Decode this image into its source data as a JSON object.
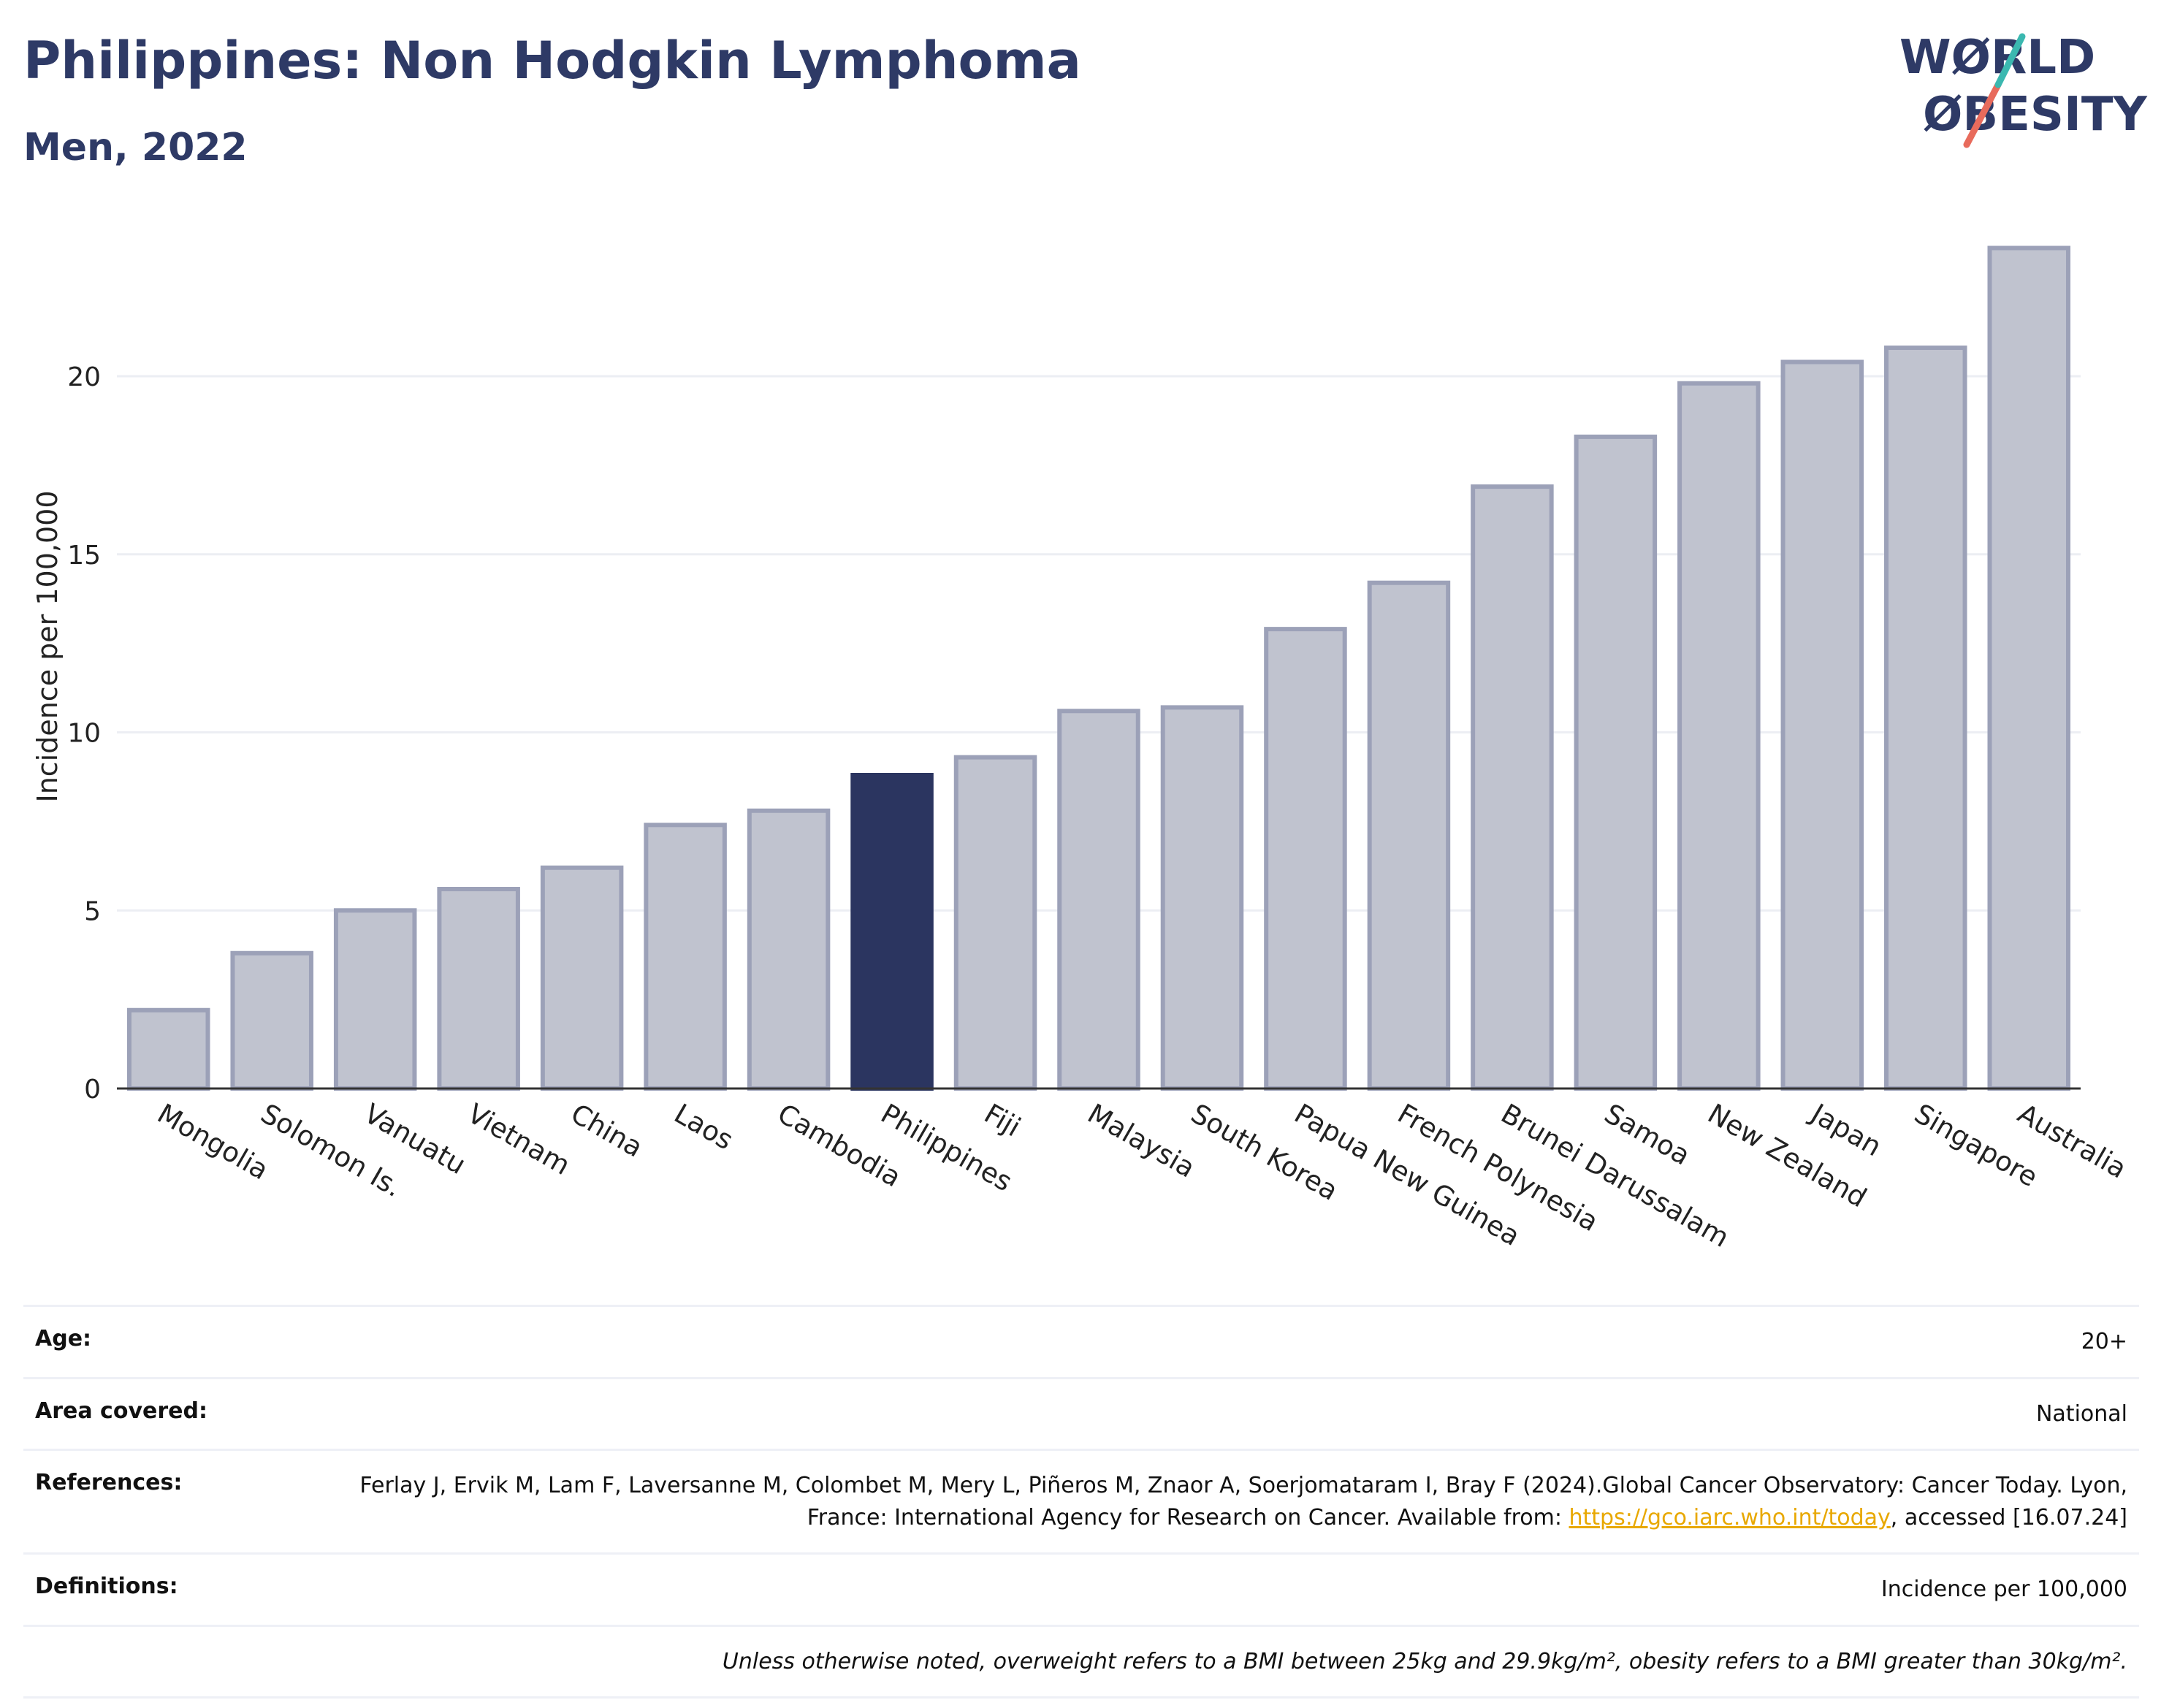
{
  "header": {
    "title": "Philippines: Non Hodgkin Lymphoma",
    "subtitle": "Men, 2022"
  },
  "logo": {
    "line1": "WØRLD",
    "line2": "ØBESITY",
    "colors": {
      "text": "#2e3a66",
      "slash_top": "#3bb8b0",
      "slash_bottom": "#e86b5c"
    }
  },
  "chart_data": {
    "type": "bar",
    "title": "",
    "xlabel": "",
    "ylabel": "Incidence per 100,000",
    "ylim": [
      0,
      24
    ],
    "yticks": [
      0,
      5,
      10,
      15,
      20
    ],
    "grid": true,
    "highlight": "Philippines",
    "categories": [
      "Mongolia",
      "Solomon Is.",
      "Vanuatu",
      "Vietnam",
      "China",
      "Laos",
      "Cambodia",
      "Philippines",
      "Fiji",
      "Malaysia",
      "South Korea",
      "Papua New Guinea",
      "French Polynesia",
      "Brunei Darussalam",
      "Samoa",
      "New Zealand",
      "Japan",
      "Singapore",
      "Australia"
    ],
    "values": [
      2.2,
      3.8,
      5.0,
      5.6,
      6.2,
      7.4,
      7.8,
      8.8,
      9.3,
      10.6,
      10.7,
      12.9,
      14.2,
      16.9,
      18.3,
      19.8,
      20.4,
      20.8,
      23.6
    ],
    "colors": {
      "bar": "#c0c3cf",
      "bar_border": "#9ca1b8",
      "highlight": "#2b3560",
      "axis": "#333333",
      "grid": "#eceef3"
    }
  },
  "info": {
    "age_label": "Age:",
    "age_value": "20+",
    "area_label": "Area covered:",
    "area_value": "National",
    "references_label": "References:",
    "references_text1": "Ferlay J, Ervik M, Lam F, Laversanne M, Colombet M, Mery L, Piñeros M, Znaor A, Soerjomataram I, Bray F (2024).Global Cancer Observatory: Cancer Today. Lyon, France: International Agency for Research on Cancer. Available from:",
    "references_link": "https://gco.iarc.who.int/today",
    "references_text2": ", accessed [16.07.24]",
    "definitions_label": "Definitions:",
    "definitions_value": "Incidence per 100,000",
    "note": "Unless otherwise noted, overweight refers to a BMI between 25kg and 29.9kg/m², obesity refers to a BMI greater than 30kg/m²."
  }
}
